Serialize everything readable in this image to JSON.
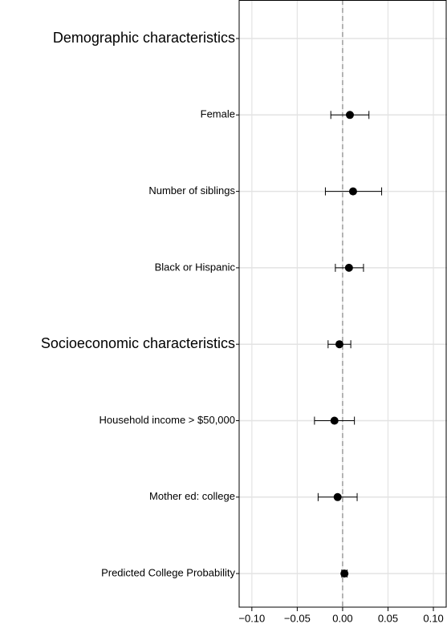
{
  "chart_data": {
    "type": "coefplot",
    "categories": [
      "Demographic characteristics",
      "Female",
      "Number of siblings",
      "Black or Hispanic",
      "Socioeconomic characteristics",
      "Household income > $50,000",
      "Mother ed: college",
      "Predicted College Probability"
    ],
    "values": [
      null,
      0.008,
      0.0115,
      0.007,
      -0.0035,
      -0.009,
      -0.0055,
      0.002
    ],
    "lower": [
      null,
      -0.013,
      -0.019,
      -0.008,
      -0.016,
      -0.031,
      -0.027,
      -0.001
    ],
    "upper": [
      null,
      0.029,
      0.043,
      0.023,
      0.009,
      0.013,
      0.016,
      0.005
    ],
    "color": "#000000",
    "xlim": [
      -0.114,
      0.115
    ],
    "xticks": [
      {
        "value": -0.1,
        "label": "−0.10"
      },
      {
        "value": -0.05,
        "label": "−0.05"
      },
      {
        "value": 0,
        "label": "0.00"
      },
      {
        "value": 0.05,
        "label": "0.05"
      },
      {
        "value": 0.1,
        "label": "0.10"
      }
    ],
    "grid": true
  }
}
